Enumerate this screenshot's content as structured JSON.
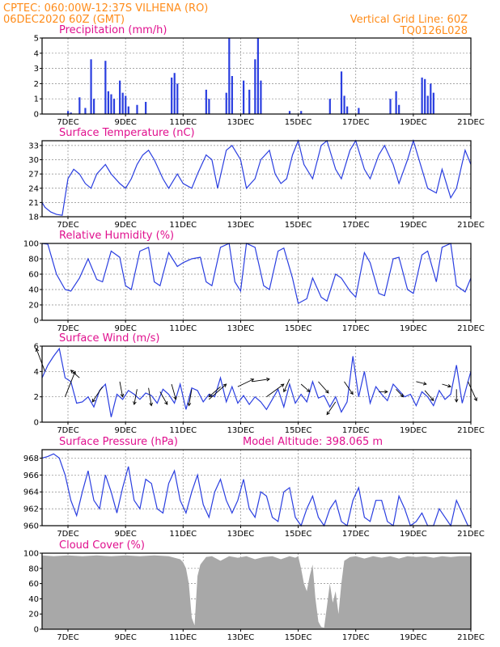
{
  "header": {
    "line1_left": "CPTEC:   060:00W-12:37S   VILHENA (RO)",
    "line2_left": "06DEC2020 60Z (GMT)",
    "line1_right": "Vertical Grid Line: 60Z",
    "line2_right": "TQ0126L028"
  },
  "colors": {
    "header": "#ff8c1a",
    "title": "#e0108e",
    "series": "#2a3ee0",
    "cloud": "#a8a8a8",
    "wind_arrow": "#000000"
  },
  "x_axis": {
    "ticks": [
      "7DEC",
      "9DEC",
      "11DEC",
      "13DEC",
      "15DEC",
      "17DEC",
      "19DEC",
      "21DEC"
    ],
    "tick_positions_days": [
      7,
      9,
      11,
      13,
      15,
      17,
      19,
      21
    ],
    "range_days": [
      6.1,
      21.0
    ]
  },
  "chart_data": [
    {
      "id": "precip",
      "type": "bar",
      "title": "Precipitation (mm/h)",
      "ylim": [
        0,
        5
      ],
      "yticks": [
        "0",
        "1",
        "2",
        "3",
        "4",
        "5"
      ],
      "x": [
        7.0,
        7.1,
        7.4,
        7.6,
        7.8,
        7.9,
        8.3,
        8.4,
        8.5,
        8.6,
        8.8,
        8.9,
        9.0,
        9.1,
        9.4,
        9.7,
        10.6,
        10.7,
        10.8,
        11.8,
        11.9,
        12.5,
        12.6,
        12.7,
        13.1,
        13.3,
        13.5,
        13.6,
        13.7,
        14.7,
        15.1,
        16.1,
        16.5,
        16.6,
        16.7,
        17.1,
        18.2,
        18.4,
        18.5,
        19.3,
        19.4,
        19.5,
        19.6,
        19.7
      ],
      "values": [
        0.2,
        0.1,
        1.1,
        0.4,
        3.6,
        1.0,
        3.5,
        1.5,
        1.3,
        1.0,
        2.2,
        1.4,
        1.2,
        0.5,
        0.6,
        0.8,
        2.4,
        2.7,
        2.0,
        1.6,
        1.0,
        1.4,
        5.0,
        2.5,
        2.2,
        1.6,
        3.6,
        5.0,
        2.2,
        0.2,
        0.2,
        1.0,
        2.8,
        1.2,
        0.5,
        0.4,
        1.0,
        1.5,
        0.6,
        2.4,
        2.3,
        1.2,
        2.0,
        1.4
      ]
    },
    {
      "id": "temp",
      "type": "line",
      "title": "Surface Temperature (nC)",
      "ylim": [
        18,
        34
      ],
      "yticks": [
        "18",
        "21",
        "24",
        "27",
        "30",
        "33"
      ],
      "x": [
        6.1,
        6.2,
        6.4,
        6.6,
        6.8,
        7.0,
        7.2,
        7.4,
        7.6,
        7.8,
        8.0,
        8.3,
        8.5,
        8.8,
        9.0,
        9.2,
        9.4,
        9.6,
        9.8,
        10.0,
        10.3,
        10.5,
        10.8,
        11.0,
        11.3,
        11.5,
        11.8,
        12.0,
        12.2,
        12.5,
        12.7,
        13.0,
        13.2,
        13.5,
        13.7,
        14.0,
        14.2,
        14.4,
        14.6,
        14.8,
        15.0,
        15.2,
        15.5,
        15.8,
        16.0,
        16.3,
        16.5,
        16.8,
        17.0,
        17.3,
        17.5,
        17.8,
        18.0,
        18.3,
        18.5,
        18.8,
        19.0,
        19.3,
        19.5,
        19.8,
        20.0,
        20.3,
        20.5,
        20.8,
        21.0
      ],
      "values": [
        21,
        20,
        19,
        18.5,
        18.3,
        26,
        28,
        27,
        25,
        24,
        27,
        29,
        27,
        25,
        24,
        26,
        29,
        31,
        32,
        30,
        26,
        24,
        27,
        25,
        24,
        27,
        31,
        30,
        24,
        32,
        33,
        30,
        24,
        26,
        30,
        32,
        27,
        25,
        26,
        31,
        34,
        29,
        26,
        33,
        34,
        28,
        26,
        32,
        34,
        28,
        26,
        31,
        33,
        29,
        25,
        30,
        34,
        28,
        24,
        23,
        28,
        22,
        24,
        32,
        29
      ]
    },
    {
      "id": "rh",
      "type": "line",
      "title": "Relative Humidity (%)",
      "ylim": [
        0,
        100
      ],
      "yticks": [
        "0",
        "20",
        "40",
        "60",
        "80",
        "100"
      ],
      "x": [
        6.1,
        6.3,
        6.6,
        6.9,
        7.1,
        7.4,
        7.7,
        8.0,
        8.2,
        8.5,
        8.8,
        9.0,
        9.2,
        9.5,
        9.8,
        10.0,
        10.2,
        10.5,
        10.8,
        11.0,
        11.3,
        11.6,
        11.8,
        12.0,
        12.3,
        12.6,
        12.8,
        13.0,
        13.2,
        13.5,
        13.8,
        14.0,
        14.3,
        14.5,
        14.8,
        15.0,
        15.3,
        15.5,
        15.8,
        16.0,
        16.3,
        16.5,
        16.8,
        17.0,
        17.3,
        17.5,
        17.8,
        18.0,
        18.3,
        18.5,
        18.8,
        19.0,
        19.3,
        19.5,
        19.8,
        20.0,
        20.3,
        20.5,
        20.8,
        21.0
      ],
      "values": [
        100,
        99,
        60,
        40,
        38,
        55,
        80,
        53,
        50,
        90,
        82,
        45,
        40,
        90,
        95,
        50,
        45,
        88,
        70,
        75,
        80,
        82,
        50,
        45,
        95,
        100,
        50,
        38,
        100,
        95,
        45,
        40,
        90,
        94,
        55,
        22,
        28,
        55,
        30,
        25,
        60,
        55,
        38,
        30,
        88,
        75,
        35,
        32,
        80,
        82,
        40,
        35,
        85,
        90,
        50,
        95,
        100,
        45,
        37,
        55
      ]
    },
    {
      "id": "wind",
      "type": "line",
      "title": "Surface Wind (m/s)",
      "ylim": [
        0,
        6
      ],
      "yticks": [
        "0",
        "2",
        "4",
        "6"
      ],
      "x": [
        6.1,
        6.3,
        6.5,
        6.7,
        6.9,
        7.1,
        7.3,
        7.5,
        7.7,
        7.9,
        8.1,
        8.3,
        8.5,
        8.7,
        8.9,
        9.1,
        9.3,
        9.5,
        9.7,
        9.9,
        10.1,
        10.3,
        10.5,
        10.7,
        10.9,
        11.1,
        11.3,
        11.5,
        11.7,
        11.9,
        12.1,
        12.3,
        12.5,
        12.7,
        12.9,
        13.1,
        13.3,
        13.5,
        13.7,
        13.9,
        14.1,
        14.3,
        14.5,
        14.7,
        14.9,
        15.1,
        15.3,
        15.5,
        15.7,
        15.9,
        16.1,
        16.3,
        16.5,
        16.7,
        16.9,
        17.1,
        17.3,
        17.5,
        17.7,
        17.9,
        18.1,
        18.3,
        18.5,
        18.7,
        18.9,
        19.1,
        19.3,
        19.5,
        19.7,
        19.9,
        20.1,
        20.3,
        20.5,
        20.7,
        20.9,
        21.0
      ],
      "values": [
        3.5,
        4.5,
        5.2,
        5.8,
        3.5,
        3.2,
        1.5,
        1.6,
        2.0,
        1.2,
        2.5,
        3.0,
        0.4,
        2.2,
        1.8,
        2.5,
        2.2,
        1.8,
        2.3,
        2.1,
        1.5,
        2.6,
        2.2,
        1.5,
        3.0,
        1.0,
        2.7,
        2.5,
        1.6,
        2.2,
        2.0,
        3.5,
        1.6,
        2.8,
        1.5,
        2.1,
        1.4,
        2.0,
        1.6,
        1.0,
        1.8,
        2.6,
        1.2,
        3.0,
        1.5,
        2.2,
        1.6,
        3.2,
        1.9,
        2.1,
        1.2,
        2.0,
        0.8,
        1.6,
        5.2,
        2.0,
        4.0,
        1.5,
        2.8,
        2.2,
        1.7,
        3.0,
        2.5,
        2.0,
        2.2,
        1.3,
        2.4,
        2.0,
        1.3,
        2.5,
        1.8,
        2.2,
        4.5,
        1.5,
        3.2,
        4.0
      ],
      "arrows": [
        {
          "x": 6.2,
          "y": 4.0,
          "dx": -0.3,
          "dy": 1.8
        },
        {
          "x": 6.9,
          "y": 2.0,
          "dx": 0.35,
          "dy": 2.0
        },
        {
          "x": 7.4,
          "y": 3.5,
          "dx": -0.3,
          "dy": 0.6
        },
        {
          "x": 8.2,
          "y": 2.8,
          "dx": -0.35,
          "dy": -1.2
        },
        {
          "x": 8.8,
          "y": 3.2,
          "dx": 0.1,
          "dy": -1.2
        },
        {
          "x": 9.4,
          "y": 2.6,
          "dx": -0.1,
          "dy": -1.2
        },
        {
          "x": 9.8,
          "y": 2.7,
          "dx": 0.1,
          "dy": -1.4
        },
        {
          "x": 10.2,
          "y": 2.4,
          "dx": 0.25,
          "dy": -1.0
        },
        {
          "x": 10.6,
          "y": 3.0,
          "dx": 0.15,
          "dy": -1.2
        },
        {
          "x": 11.3,
          "y": 2.6,
          "dx": -0.1,
          "dy": -1.3
        },
        {
          "x": 11.9,
          "y": 1.8,
          "dx": 0.6,
          "dy": 1.2
        },
        {
          "x": 12.3,
          "y": 2.8,
          "dx": -0.4,
          "dy": -0.8
        },
        {
          "x": 12.9,
          "y": 2.8,
          "dx": 0.55,
          "dy": 0.6
        },
        {
          "x": 13.4,
          "y": 3.2,
          "dx": 0.6,
          "dy": 0.2
        },
        {
          "x": 13.9,
          "y": 2.0,
          "dx": 0.6,
          "dy": 1.0
        },
        {
          "x": 14.7,
          "y": 3.4,
          "dx": -0.2,
          "dy": -1.0
        },
        {
          "x": 15.1,
          "y": 3.0,
          "dx": 0.3,
          "dy": -0.6
        },
        {
          "x": 15.7,
          "y": 3.2,
          "dx": 0.35,
          "dy": -0.9
        },
        {
          "x": 16.3,
          "y": 1.6,
          "dx": -0.3,
          "dy": -1.0
        },
        {
          "x": 16.6,
          "y": 3.2,
          "dx": 0.3,
          "dy": -1.0
        },
        {
          "x": 17.8,
          "y": 2.4,
          "dx": 0.3,
          "dy": 0.0
        },
        {
          "x": 18.4,
          "y": 2.6,
          "dx": 0.25,
          "dy": -0.6
        },
        {
          "x": 19.1,
          "y": 3.2,
          "dx": 0.35,
          "dy": -0.2
        },
        {
          "x": 19.4,
          "y": 2.5,
          "dx": 0.3,
          "dy": -0.8
        },
        {
          "x": 20.0,
          "y": 3.0,
          "dx": 0.3,
          "dy": -0.2
        },
        {
          "x": 20.5,
          "y": 2.6,
          "dx": 0.0,
          "dy": -1.0
        },
        {
          "x": 20.9,
          "y": 3.2,
          "dx": 0.3,
          "dy": -1.5
        }
      ]
    },
    {
      "id": "pressure",
      "type": "line",
      "title": "Surface Pressure (hPa)",
      "extra_label": "Model Altitude: 398.065 m",
      "ylim": [
        960,
        969
      ],
      "yticks": [
        "960",
        "962",
        "964",
        "966",
        "968"
      ],
      "x": [
        6.1,
        6.3,
        6.5,
        6.7,
        6.9,
        7.1,
        7.3,
        7.5,
        7.7,
        7.9,
        8.1,
        8.3,
        8.5,
        8.7,
        8.9,
        9.1,
        9.3,
        9.5,
        9.7,
        9.9,
        10.1,
        10.3,
        10.5,
        10.7,
        10.9,
        11.1,
        11.3,
        11.5,
        11.7,
        11.9,
        12.1,
        12.3,
        12.5,
        12.7,
        12.9,
        13.1,
        13.3,
        13.5,
        13.7,
        13.9,
        14.1,
        14.3,
        14.5,
        14.7,
        14.9,
        15.1,
        15.3,
        15.5,
        15.7,
        15.9,
        16.1,
        16.3,
        16.5,
        16.7,
        16.9,
        17.1,
        17.3,
        17.5,
        17.7,
        17.9,
        18.1,
        18.3,
        18.5,
        18.7,
        18.9,
        19.1,
        19.3,
        19.5,
        19.7,
        19.9,
        20.1,
        20.3,
        20.5,
        20.7,
        20.9,
        21.0
      ],
      "values": [
        968,
        968.2,
        968.5,
        968,
        966,
        963,
        961.2,
        964,
        966.5,
        963,
        962,
        966,
        964,
        961.5,
        964.5,
        967,
        963,
        962,
        965.5,
        965,
        962,
        961.5,
        965,
        966.5,
        963,
        961.5,
        964,
        966,
        962.5,
        961,
        964,
        965.5,
        963,
        961.5,
        963,
        965.5,
        962,
        961,
        964,
        963.5,
        961,
        960.5,
        964,
        964.5,
        961,
        960,
        962,
        963.5,
        961,
        960,
        962,
        963,
        960.5,
        960,
        963,
        964.5,
        961,
        960.5,
        963,
        963,
        960.5,
        960,
        963.5,
        962,
        960,
        960.5,
        961.5,
        960,
        959.5,
        962,
        961,
        960,
        963,
        961.5,
        960,
        959.5
      ]
    },
    {
      "id": "cloud",
      "type": "area",
      "title": "Cloud Cover (%)",
      "ylim": [
        0,
        100
      ],
      "yticks": [
        "0",
        "20",
        "40",
        "60",
        "80",
        "100"
      ],
      "x": [
        6.1,
        6.5,
        7.0,
        7.5,
        8.0,
        8.5,
        9.0,
        9.5,
        10.0,
        10.5,
        10.9,
        11.0,
        11.1,
        11.2,
        11.3,
        11.4,
        11.5,
        11.6,
        11.7,
        11.8,
        12.0,
        12.3,
        12.6,
        12.9,
        13.2,
        13.5,
        13.8,
        14.1,
        14.4,
        14.7,
        14.9,
        15.0,
        15.1,
        15.2,
        15.3,
        15.4,
        15.5,
        15.6,
        15.7,
        15.8,
        15.9,
        16.0,
        16.1,
        16.2,
        16.3,
        16.4,
        16.5,
        16.6,
        16.8,
        17.0,
        17.3,
        17.6,
        17.9,
        18.2,
        18.5,
        18.8,
        19.1,
        19.4,
        19.7,
        20.0,
        20.3,
        20.6,
        20.9,
        21.0
      ],
      "values": [
        97,
        96,
        97,
        96,
        97,
        96,
        97,
        96,
        97,
        96,
        92,
        88,
        80,
        60,
        15,
        5,
        70,
        85,
        90,
        95,
        96,
        90,
        96,
        94,
        96,
        92,
        95,
        96,
        92,
        96,
        94,
        96,
        80,
        60,
        50,
        70,
        85,
        40,
        10,
        3,
        2,
        30,
        60,
        35,
        50,
        20,
        60,
        90,
        95,
        96,
        93,
        96,
        94,
        96,
        93,
        96,
        95,
        96,
        94,
        96,
        95,
        96,
        96,
        96
      ]
    }
  ]
}
